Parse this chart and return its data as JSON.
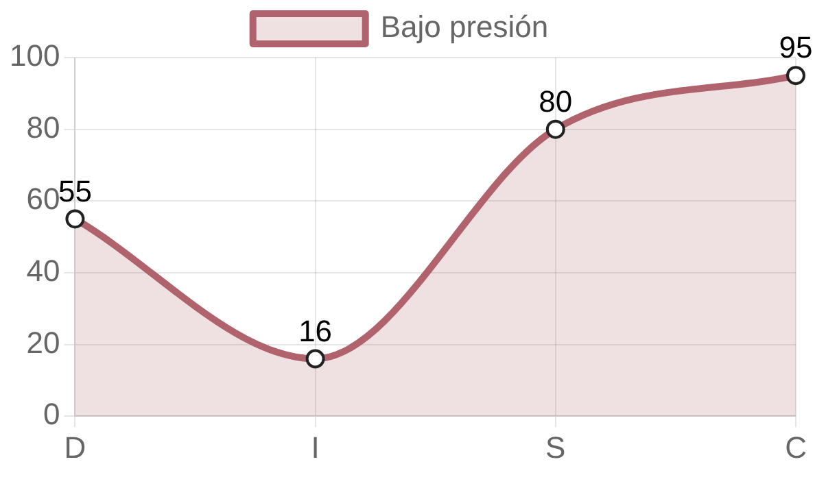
{
  "chart_data": {
    "type": "area",
    "categories": [
      "D",
      "I",
      "S",
      "C"
    ],
    "series": [
      {
        "name": "Bajo presión",
        "color": "#b0636d",
        "values": [
          55,
          16,
          80,
          95
        ]
      }
    ],
    "ylim": [
      0,
      100
    ],
    "yticks": [
      0,
      20,
      40,
      60,
      80,
      100
    ],
    "grid": true,
    "legend": "top",
    "marker": "circle",
    "data_labels": true
  }
}
